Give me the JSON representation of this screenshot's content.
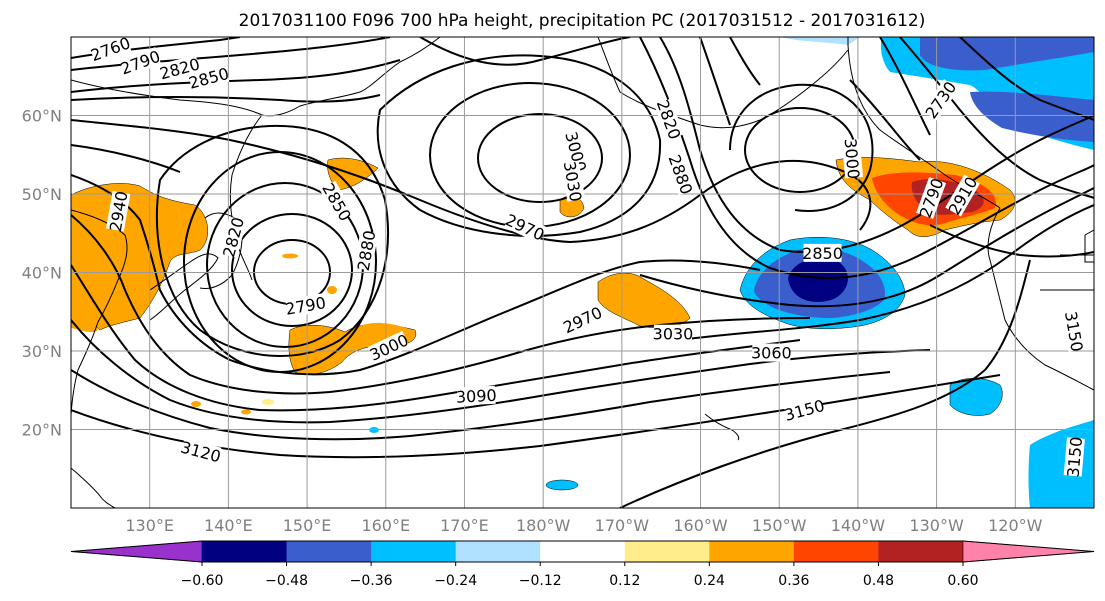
{
  "title": "2017031100 F096 700 hPa height, precipitation PC (2017031512 - 2017031612)",
  "lat_ticks": [
    {
      "value": 60,
      "label": "60°N"
    },
    {
      "value": 50,
      "label": "50°N"
    },
    {
      "value": 40,
      "label": "40°N"
    },
    {
      "value": 30,
      "label": "30°N"
    },
    {
      "value": 20,
      "label": "20°N"
    }
  ],
  "lon_ticks": [
    {
      "value": 130,
      "label": "130°E"
    },
    {
      "value": 140,
      "label": "140°E"
    },
    {
      "value": 150,
      "label": "150°E"
    },
    {
      "value": 160,
      "label": "160°E"
    },
    {
      "value": 170,
      "label": "170°E"
    },
    {
      "value": 180,
      "label": "180°W"
    },
    {
      "value": 190,
      "label": "170°W"
    },
    {
      "value": 200,
      "label": "160°W"
    },
    {
      "value": 210,
      "label": "150°W"
    },
    {
      "value": 220,
      "label": "140°W"
    },
    {
      "value": 230,
      "label": "130°W"
    },
    {
      "value": 240,
      "label": "120°W"
    }
  ],
  "map_extent": {
    "lon": [
      120,
      250
    ],
    "lat": [
      10,
      70
    ]
  },
  "colorbar": {
    "levels": [
      "−0.60",
      "−0.48",
      "−0.36",
      "−0.24",
      "−0.12",
      "0.12",
      "0.24",
      "0.36",
      "0.48",
      "0.60"
    ],
    "colors": [
      "#9932cc",
      "#000080",
      "#3a5fcd",
      "#00bfff",
      "#b0e2ff",
      "#ffffff",
      "#ffec8b",
      "#ffa500",
      "#ff4500",
      "#b22222",
      "#ff82ab"
    ]
  },
  "contour_labels": [
    {
      "text": "2760",
      "lon": 125,
      "lat": 68.5,
      "rot": -20
    },
    {
      "text": "2790",
      "lon": 128.8,
      "lat": 66.8,
      "rot": -20
    },
    {
      "text": "2820",
      "lon": 133.8,
      "lat": 66.0,
      "rot": -15
    },
    {
      "text": "2850",
      "lon": 137.5,
      "lat": 64.8,
      "rot": -15
    },
    {
      "text": "2940",
      "lon": 126.0,
      "lat": 47.8,
      "rot": -80
    },
    {
      "text": "2820",
      "lon": 140.6,
      "lat": 44.5,
      "rot": -75
    },
    {
      "text": "2850",
      "lon": 153.8,
      "lat": 49.0,
      "rot": 60
    },
    {
      "text": "2880",
      "lon": 157.5,
      "lat": 42.8,
      "rot": -80
    },
    {
      "text": "2790",
      "lon": 149.8,
      "lat": 35.8,
      "rot": -10
    },
    {
      "text": "3000",
      "lon": 160.4,
      "lat": 30.5,
      "rot": -25
    },
    {
      "text": "3000",
      "lon": 184.2,
      "lat": 55.4,
      "rot": 75
    },
    {
      "text": "3030",
      "lon": 183.8,
      "lat": 51.6,
      "rot": 80
    },
    {
      "text": "2970",
      "lon": 177.7,
      "lat": 45.8,
      "rot": 25
    },
    {
      "text": "2820",
      "lon": 196.0,
      "lat": 59.5,
      "rot": 70
    },
    {
      "text": "2880",
      "lon": 197.5,
      "lat": 52.5,
      "rot": 70
    },
    {
      "text": "2970",
      "lon": 185.0,
      "lat": 34.0,
      "rot": -25
    },
    {
      "text": "3030",
      "lon": 196.5,
      "lat": 32.2,
      "rot": 0
    },
    {
      "text": "3060",
      "lon": 209.0,
      "lat": 29.8,
      "rot": 0
    },
    {
      "text": "3090",
      "lon": 171.5,
      "lat": 24.3,
      "rot": -3
    },
    {
      "text": "3150",
      "lon": 213.2,
      "lat": 22.5,
      "rot": -15
    },
    {
      "text": "3120",
      "lon": 136.5,
      "lat": 17.2,
      "rot": 15
    },
    {
      "text": "2850",
      "lon": 215.5,
      "lat": 42.5,
      "rot": 0
    },
    {
      "text": "3000",
      "lon": 219.3,
      "lat": 54.5,
      "rot": 85
    },
    {
      "text": "2730",
      "lon": 230.5,
      "lat": 62.0,
      "rot": -55
    },
    {
      "text": "2790",
      "lon": 229.3,
      "lat": 49.5,
      "rot": -70
    },
    {
      "text": "2910",
      "lon": 233.3,
      "lat": 49.8,
      "rot": -60
    },
    {
      "text": "3150",
      "lon": 247.5,
      "lat": 32.5,
      "rot": 80
    },
    {
      "text": "3150",
      "lon": 247.5,
      "lat": 16.5,
      "rot": -85
    }
  ]
}
